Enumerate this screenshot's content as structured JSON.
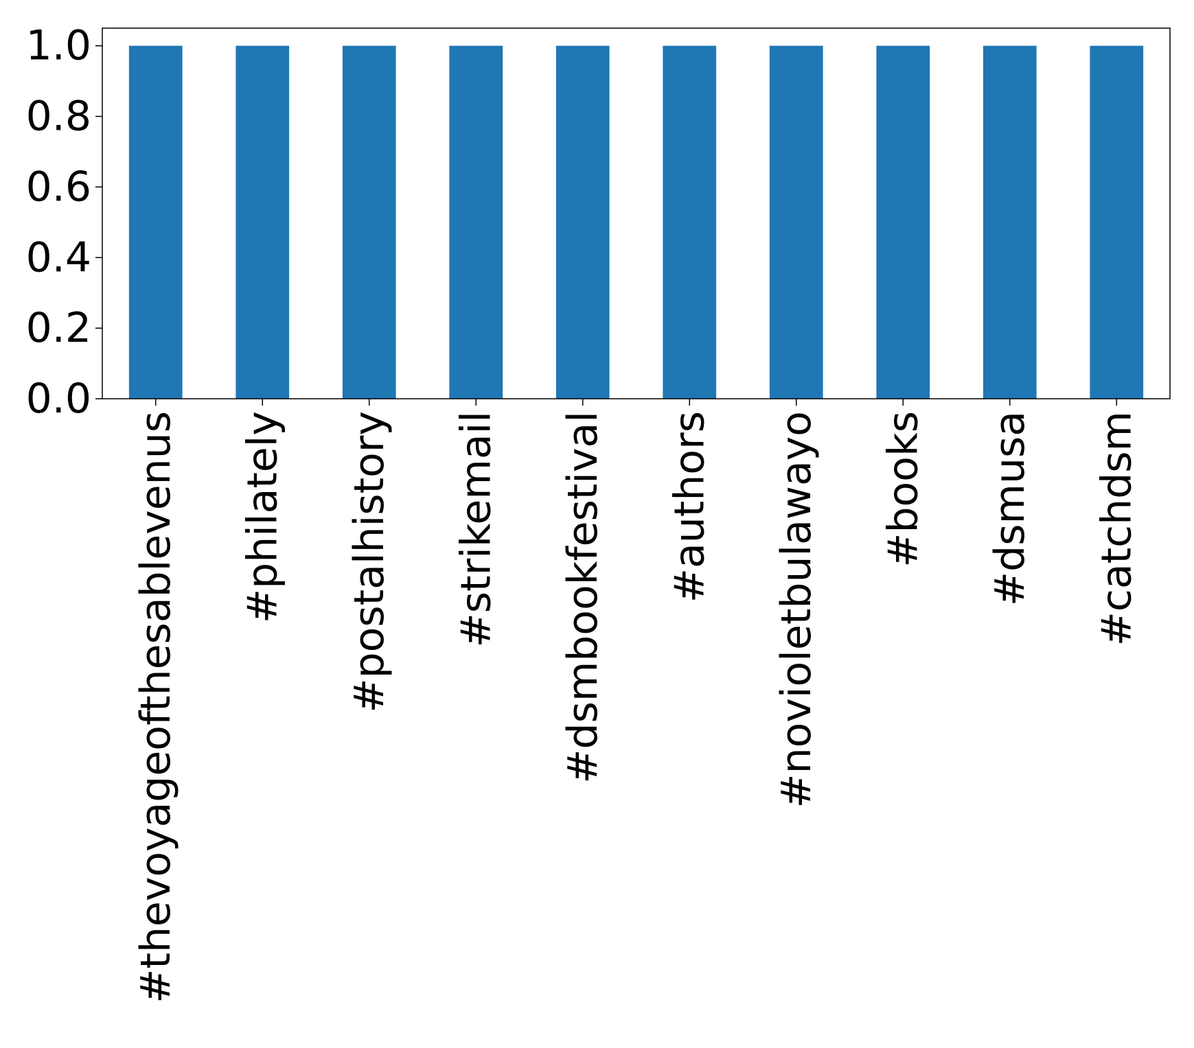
{
  "chart_data": {
    "type": "bar",
    "categories": [
      "#thevoyageofthesablevenus",
      "#philately",
      "#postalhistory",
      "#strikemail",
      "#dsmbookfestival",
      "#authors",
      "#novioletbulawayo",
      "#books",
      "#dsmusa",
      "#catchdsm"
    ],
    "values": [
      1,
      1,
      1,
      1,
      1,
      1,
      1,
      1,
      1,
      1
    ],
    "title": "",
    "xlabel": "",
    "ylabel": "",
    "ylim": [
      0,
      1.05
    ],
    "yticks": [
      "0.0",
      "0.2",
      "0.4",
      "0.6",
      "0.8",
      "1.0"
    ],
    "grid": false,
    "bar_color": "#1f77b4"
  }
}
